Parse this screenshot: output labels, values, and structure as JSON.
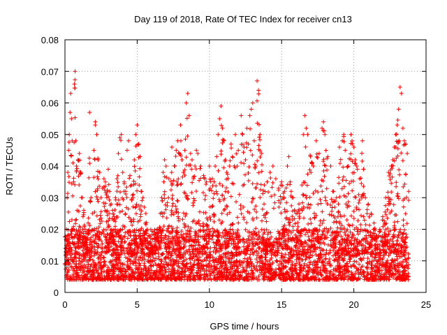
{
  "chart_data": {
    "type": "scatter",
    "title": "Day 119 of 2018, Rate Of TEC Index for receiver cn13",
    "xlabel": "GPS time / hours",
    "ylabel": "ROTI / TECUs",
    "xlim": [
      0,
      25
    ],
    "ylim": [
      0,
      0.08
    ],
    "x_ticks": [
      0,
      5,
      10,
      15,
      20,
      25
    ],
    "y_ticks": [
      0,
      0.01,
      0.02,
      0.03,
      0.04,
      0.05,
      0.06,
      0.07,
      0.08
    ],
    "x_tick_labels": [
      "0",
      "5",
      "10",
      "15",
      "20",
      "25"
    ],
    "y_tick_labels": [
      "0",
      "0.01",
      "0.02",
      "0.03",
      "0.04",
      "0.05",
      "0.06",
      "0.07",
      "0.08"
    ],
    "grid": true,
    "marker": "plus",
    "color": "#ff0000",
    "series": [
      {
        "name": "ROTI",
        "points": [
          [
            0.05,
            0.012
          ],
          [
            0.1,
            0.02
          ],
          [
            0.15,
            0.03
          ],
          [
            0.2,
            0.038
          ],
          [
            0.25,
            0.045
          ],
          [
            0.3,
            0.05
          ],
          [
            0.35,
            0.057
          ],
          [
            0.4,
            0.063
          ],
          [
            0.45,
            0.055
          ],
          [
            0.5,
            0.048
          ],
          [
            0.55,
            0.041
          ],
          [
            0.6,
            0.035
          ],
          [
            0.65,
            0.066
          ],
          [
            0.7,
            0.07
          ],
          [
            0.75,
            0.048
          ],
          [
            0.8,
            0.04
          ],
          [
            0.9,
            0.042
          ],
          [
            1.0,
            0.044
          ],
          [
            1.1,
            0.038
          ],
          [
            1.2,
            0.03
          ],
          [
            1.3,
            0.026
          ],
          [
            1.4,
            0.02
          ],
          [
            1.5,
            0.017
          ],
          [
            1.6,
            0.022
          ],
          [
            1.7,
            0.057
          ],
          [
            1.8,
            0.03
          ],
          [
            1.9,
            0.025
          ],
          [
            2.0,
            0.045
          ],
          [
            2.1,
            0.054
          ],
          [
            2.2,
            0.05
          ],
          [
            2.3,
            0.042
          ],
          [
            2.4,
            0.038
          ],
          [
            2.5,
            0.03
          ],
          [
            2.6,
            0.033
          ],
          [
            2.7,
            0.036
          ],
          [
            2.8,
            0.035
          ],
          [
            2.9,
            0.03
          ],
          [
            3.0,
            0.039
          ],
          [
            3.1,
            0.032
          ],
          [
            3.2,
            0.028
          ],
          [
            3.3,
            0.026
          ],
          [
            3.4,
            0.024
          ],
          [
            3.5,
            0.03
          ],
          [
            3.6,
            0.036
          ],
          [
            3.7,
            0.044
          ],
          [
            3.8,
            0.049
          ],
          [
            3.9,
            0.05
          ],
          [
            4.0,
            0.038
          ],
          [
            4.1,
            0.035
          ],
          [
            4.2,
            0.032
          ],
          [
            4.3,
            0.045
          ],
          [
            4.4,
            0.048
          ],
          [
            4.5,
            0.037
          ],
          [
            4.6,
            0.034
          ],
          [
            4.7,
            0.03
          ],
          [
            4.8,
            0.042
          ],
          [
            4.9,
            0.05
          ],
          [
            5.0,
            0.053
          ],
          [
            5.1,
            0.047
          ],
          [
            5.2,
            0.043
          ],
          [
            5.3,
            0.032
          ],
          [
            5.4,
            0.03
          ],
          [
            5.5,
            0.027
          ],
          [
            5.6,
            0.025
          ],
          [
            5.7,
            0.02
          ],
          [
            5.8,
            0.018
          ],
          [
            5.9,
            0.016
          ],
          [
            6.0,
            0.014
          ],
          [
            6.2,
            0.017
          ],
          [
            6.4,
            0.02
          ],
          [
            6.6,
            0.025
          ],
          [
            6.7,
            0.03
          ],
          [
            6.8,
            0.038
          ],
          [
            6.9,
            0.042
          ],
          [
            7.0,
            0.04
          ],
          [
            7.2,
            0.036
          ],
          [
            7.4,
            0.046
          ],
          [
            7.6,
            0.04
          ],
          [
            7.7,
            0.045
          ],
          [
            7.8,
            0.048
          ],
          [
            7.9,
            0.044
          ],
          [
            8.0,
            0.053
          ],
          [
            8.1,
            0.042
          ],
          [
            8.2,
            0.038
          ],
          [
            8.3,
            0.045
          ],
          [
            8.4,
            0.06
          ],
          [
            8.5,
            0.063
          ],
          [
            8.6,
            0.056
          ],
          [
            8.7,
            0.044
          ],
          [
            8.8,
            0.042
          ],
          [
            8.9,
            0.036
          ],
          [
            9.0,
            0.04
          ],
          [
            9.1,
            0.045
          ],
          [
            9.2,
            0.044
          ],
          [
            9.4,
            0.04
          ],
          [
            9.6,
            0.037
          ],
          [
            9.8,
            0.035
          ],
          [
            10.0,
            0.04
          ],
          [
            10.2,
            0.036
          ],
          [
            10.4,
            0.04
          ],
          [
            10.5,
            0.043
          ],
          [
            10.6,
            0.05
          ],
          [
            10.7,
            0.055
          ],
          [
            10.8,
            0.059
          ],
          [
            10.9,
            0.052
          ],
          [
            11.0,
            0.048
          ],
          [
            11.1,
            0.042
          ],
          [
            11.2,
            0.038
          ],
          [
            11.4,
            0.04
          ],
          [
            11.5,
            0.047
          ],
          [
            11.6,
            0.043
          ],
          [
            11.8,
            0.05
          ],
          [
            12.0,
            0.045
          ],
          [
            12.2,
            0.056
          ],
          [
            12.3,
            0.05
          ],
          [
            12.4,
            0.046
          ],
          [
            12.5,
            0.042
          ],
          [
            12.6,
            0.052
          ],
          [
            12.7,
            0.047
          ],
          [
            12.8,
            0.056
          ],
          [
            12.9,
            0.058
          ],
          [
            13.0,
            0.06
          ],
          [
            13.1,
            0.048
          ],
          [
            13.2,
            0.04
          ],
          [
            13.3,
            0.067
          ],
          [
            13.4,
            0.064
          ],
          [
            13.5,
            0.05
          ],
          [
            13.6,
            0.044
          ],
          [
            13.8,
            0.034
          ],
          [
            14.0,
            0.035
          ],
          [
            14.2,
            0.038
          ],
          [
            14.4,
            0.04
          ],
          [
            14.6,
            0.036
          ],
          [
            14.8,
            0.033
          ],
          [
            15.0,
            0.035
          ],
          [
            15.2,
            0.032
          ],
          [
            15.4,
            0.04
          ],
          [
            15.5,
            0.043
          ],
          [
            15.6,
            0.035
          ],
          [
            15.8,
            0.03
          ],
          [
            16.0,
            0.025
          ],
          [
            16.2,
            0.028
          ],
          [
            16.4,
            0.034
          ],
          [
            16.5,
            0.05
          ],
          [
            16.6,
            0.056
          ],
          [
            16.7,
            0.052
          ],
          [
            16.8,
            0.05
          ],
          [
            17.0,
            0.043
          ],
          [
            17.2,
            0.04
          ],
          [
            17.4,
            0.048
          ],
          [
            17.6,
            0.044
          ],
          [
            17.8,
            0.052
          ],
          [
            17.9,
            0.054
          ],
          [
            18.0,
            0.05
          ],
          [
            18.2,
            0.043
          ],
          [
            18.4,
            0.04
          ],
          [
            18.6,
            0.032
          ],
          [
            18.8,
            0.03
          ],
          [
            19.0,
            0.046
          ],
          [
            19.2,
            0.048
          ],
          [
            19.3,
            0.05
          ],
          [
            19.4,
            0.045
          ],
          [
            19.6,
            0.04
          ],
          [
            19.8,
            0.05
          ],
          [
            20.0,
            0.046
          ],
          [
            20.1,
            0.042
          ],
          [
            20.2,
            0.04
          ],
          [
            20.4,
            0.036
          ],
          [
            20.6,
            0.048
          ],
          [
            20.8,
            0.03
          ],
          [
            21.0,
            0.028
          ],
          [
            21.2,
            0.025
          ],
          [
            21.4,
            0.022
          ],
          [
            21.6,
            0.018
          ],
          [
            21.8,
            0.02
          ],
          [
            22.0,
            0.024
          ],
          [
            22.2,
            0.03
          ],
          [
            22.4,
            0.038
          ],
          [
            22.6,
            0.04
          ],
          [
            22.7,
            0.042
          ],
          [
            22.8,
            0.046
          ],
          [
            22.9,
            0.05
          ],
          [
            23.0,
            0.053
          ],
          [
            23.1,
            0.058
          ],
          [
            23.2,
            0.065
          ],
          [
            23.3,
            0.063
          ],
          [
            23.4,
            0.052
          ],
          [
            23.5,
            0.048
          ],
          [
            23.6,
            0.047
          ],
          [
            23.7,
            0.044
          ],
          [
            23.8,
            0.032
          ]
        ]
      }
    ],
    "baseline_band": {
      "x_range": [
        0,
        23.8
      ],
      "y_range": [
        0.004,
        0.02
      ],
      "density": "very high"
    }
  }
}
